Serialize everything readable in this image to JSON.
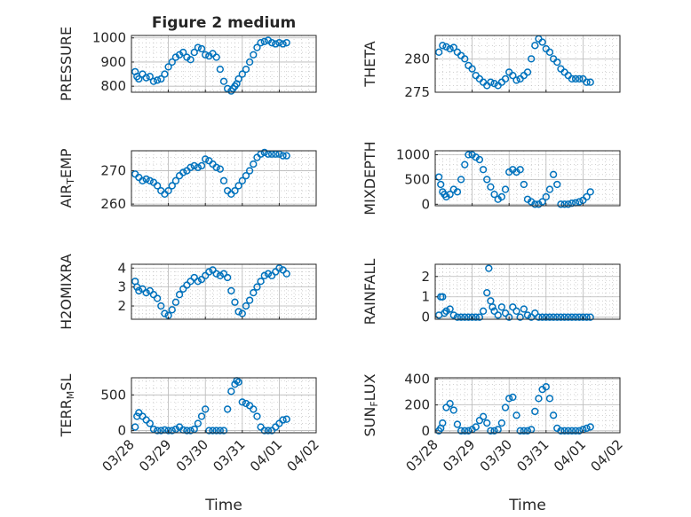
{
  "figure_title": "Figure 2 medium",
  "colors": {
    "marker": "#0072BD",
    "axes": "#262626",
    "grid": "#b8b8b8"
  },
  "chart_data": [
    {
      "type": "scatter",
      "ylabel": "PRESSURE",
      "ylabel_main": "PRESSURE",
      "ylabel_sub": "",
      "ylabel_rest": "",
      "ylim": [
        775,
        1010
      ],
      "yticks": [
        800,
        900,
        1000
      ],
      "show_xticklabels": false,
      "x": [
        0.1,
        0.15,
        0.2,
        0.3,
        0.4,
        0.5,
        0.6,
        0.7,
        0.8,
        0.9,
        1.0,
        1.1,
        1.2,
        1.3,
        1.4,
        1.5,
        1.6,
        1.7,
        1.8,
        1.9,
        2.0,
        2.1,
        2.2,
        2.3,
        2.4,
        2.5,
        2.6,
        2.7,
        2.75,
        2.8,
        2.85,
        2.9,
        3.0,
        3.1,
        3.2,
        3.3,
        3.4,
        3.5,
        3.6,
        3.7,
        3.8,
        3.9,
        4.0,
        4.1,
        4.2
      ],
      "y": [
        860,
        840,
        830,
        850,
        835,
        840,
        820,
        825,
        830,
        850,
        880,
        900,
        920,
        930,
        940,
        920,
        910,
        940,
        960,
        955,
        930,
        925,
        935,
        920,
        870,
        820,
        790,
        780,
        790,
        800,
        810,
        830,
        850,
        870,
        900,
        930,
        960,
        980,
        985,
        990,
        980,
        975,
        980,
        975,
        980
      ]
    },
    {
      "type": "scatter",
      "ylabel": "THETA",
      "ylabel_main": "THETA",
      "ylabel_sub": "",
      "ylabel_rest": "",
      "ylim": [
        275,
        283.5
      ],
      "yticks": [
        275,
        280
      ],
      "show_xticklabels": false,
      "x": [
        0.1,
        0.2,
        0.3,
        0.4,
        0.5,
        0.6,
        0.7,
        0.8,
        0.9,
        1.0,
        1.1,
        1.2,
        1.3,
        1.4,
        1.5,
        1.6,
        1.7,
        1.8,
        1.9,
        2.0,
        2.1,
        2.2,
        2.3,
        2.4,
        2.5,
        2.6,
        2.7,
        2.8,
        2.9,
        3.0,
        3.1,
        3.2,
        3.3,
        3.4,
        3.5,
        3.6,
        3.7,
        3.8,
        3.9,
        4.0,
        4.1,
        4.2
      ],
      "y": [
        281,
        282,
        281.8,
        281.5,
        281.7,
        281,
        280.5,
        280,
        279,
        278.5,
        277.5,
        277,
        276.5,
        276,
        276.5,
        276.3,
        276,
        276.5,
        277,
        278,
        277.5,
        276.8,
        277,
        277.5,
        278,
        280,
        282,
        283,
        282.5,
        281.5,
        281,
        280,
        279.5,
        278.5,
        278,
        277.5,
        277,
        277,
        277,
        277,
        276.5,
        276.5
      ]
    },
    {
      "type": "scatter",
      "ylabel": "AIR_TEMP",
      "ylabel_main": "AIR",
      "ylabel_sub": "T",
      "ylabel_rest": "EMP",
      "ylim": [
        259.5,
        276
      ],
      "yticks": [
        260,
        270
      ],
      "show_xticklabels": false,
      "x": [
        0.1,
        0.2,
        0.3,
        0.4,
        0.5,
        0.6,
        0.7,
        0.8,
        0.9,
        1.0,
        1.1,
        1.2,
        1.3,
        1.4,
        1.5,
        1.6,
        1.7,
        1.8,
        1.9,
        2.0,
        2.1,
        2.2,
        2.3,
        2.4,
        2.5,
        2.6,
        2.7,
        2.8,
        2.9,
        3.0,
        3.1,
        3.2,
        3.3,
        3.4,
        3.5,
        3.6,
        3.7,
        3.8,
        3.9,
        4.0,
        4.1,
        4.2
      ],
      "y": [
        269,
        268,
        267,
        267.5,
        267,
        266.5,
        265.5,
        264,
        263,
        264,
        265.5,
        267,
        268.5,
        269.5,
        270,
        271,
        271.5,
        271,
        271.5,
        273.5,
        273,
        272,
        271,
        270.5,
        267,
        264,
        263,
        264,
        265.5,
        267,
        268.5,
        270,
        272,
        274,
        275,
        275.5,
        275,
        275,
        275,
        275,
        274.5,
        274.5
      ]
    },
    {
      "type": "scatter",
      "ylabel": "MIXDEPTH",
      "ylabel_main": "MIXDEPTH",
      "ylabel_sub": "",
      "ylabel_rest": "",
      "ylim": [
        -30,
        1080
      ],
      "yticks": [
        0,
        500,
        1000
      ],
      "show_xticklabels": false,
      "x": [
        0.1,
        0.15,
        0.2,
        0.25,
        0.3,
        0.4,
        0.5,
        0.6,
        0.7,
        0.8,
        0.9,
        1.0,
        1.1,
        1.2,
        1.3,
        1.4,
        1.5,
        1.6,
        1.7,
        1.8,
        1.9,
        2.0,
        2.1,
        2.2,
        2.3,
        2.4,
        2.5,
        2.6,
        2.7,
        2.8,
        2.9,
        3.0,
        3.1,
        3.2,
        3.3,
        3.4,
        3.5,
        3.6,
        3.7,
        3.8,
        3.9,
        4.0,
        4.1,
        4.2
      ],
      "y": [
        550,
        400,
        250,
        200,
        150,
        200,
        300,
        250,
        500,
        800,
        1000,
        1000,
        950,
        900,
        700,
        500,
        350,
        200,
        100,
        150,
        300,
        650,
        700,
        650,
        700,
        400,
        100,
        50,
        0,
        0,
        50,
        150,
        300,
        600,
        400,
        0,
        0,
        0,
        20,
        30,
        50,
        80,
        150,
        250
      ]
    },
    {
      "type": "scatter",
      "ylabel": "H2OMIXRA",
      "ylabel_main": "H2OMIXRA",
      "ylabel_sub": "",
      "ylabel_rest": "",
      "ylim": [
        1.3,
        4.2
      ],
      "yticks": [
        2,
        3,
        4
      ],
      "show_xticklabels": false,
      "x": [
        0.1,
        0.15,
        0.2,
        0.3,
        0.4,
        0.5,
        0.6,
        0.7,
        0.8,
        0.9,
        1.0,
        1.1,
        1.2,
        1.3,
        1.4,
        1.5,
        1.6,
        1.7,
        1.8,
        1.9,
        2.0,
        2.1,
        2.2,
        2.3,
        2.4,
        2.5,
        2.6,
        2.7,
        2.8,
        2.9,
        3.0,
        3.1,
        3.2,
        3.3,
        3.4,
        3.5,
        3.6,
        3.7,
        3.8,
        3.9,
        4.0,
        4.1,
        4.2
      ],
      "y": [
        3.3,
        3.0,
        2.8,
        2.9,
        2.7,
        2.8,
        2.6,
        2.4,
        2.0,
        1.6,
        1.5,
        1.8,
        2.2,
        2.6,
        2.9,
        3.1,
        3.3,
        3.5,
        3.3,
        3.4,
        3.6,
        3.8,
        3.9,
        3.7,
        3.6,
        3.7,
        3.5,
        2.8,
        2.2,
        1.7,
        1.6,
        2.0,
        2.3,
        2.7,
        3.0,
        3.3,
        3.6,
        3.7,
        3.6,
        3.8,
        4.0,
        3.9,
        3.7
      ]
    },
    {
      "type": "scatter",
      "ylabel": "RAINFALL",
      "ylabel_main": "RAINFALL",
      "ylabel_sub": "",
      "ylabel_rest": "",
      "ylim": [
        -0.1,
        2.6
      ],
      "yticks": [
        0,
        1,
        2
      ],
      "show_xticklabels": false,
      "x": [
        0.1,
        0.15,
        0.2,
        0.25,
        0.3,
        0.4,
        0.5,
        0.6,
        0.7,
        0.8,
        0.9,
        1.0,
        1.1,
        1.2,
        1.3,
        1.4,
        1.45,
        1.5,
        1.55,
        1.6,
        1.7,
        1.8,
        1.9,
        2.0,
        2.1,
        2.2,
        2.3,
        2.4,
        2.5,
        2.6,
        2.7,
        2.8,
        2.9,
        3.0,
        3.1,
        3.2,
        3.3,
        3.4,
        3.5,
        3.6,
        3.7,
        3.8,
        3.9,
        4.0,
        4.1,
        4.2
      ],
      "y": [
        0.1,
        1.0,
        1.0,
        0.2,
        0.3,
        0.4,
        0.1,
        0.0,
        0.0,
        0.0,
        0.0,
        0.0,
        0.0,
        0.0,
        0.3,
        1.2,
        2.4,
        0.8,
        0.5,
        0.3,
        0.1,
        0.5,
        0.2,
        0.0,
        0.5,
        0.3,
        0.0,
        0.4,
        0.1,
        0.0,
        0.2,
        0.0,
        0.0,
        0.0,
        0.0,
        0.0,
        0.0,
        0.0,
        0.0,
        0.0,
        0.0,
        0.0,
        0.0,
        0.0,
        0.0,
        0.0
      ]
    },
    {
      "type": "scatter",
      "ylabel": "TERR_MSL",
      "ylabel_main": "TERR",
      "ylabel_sub": "M",
      "ylabel_rest": "SL",
      "ylim": [
        -30,
        740
      ],
      "yticks": [
        0,
        500
      ],
      "show_xticklabels": true,
      "x": [
        0.1,
        0.15,
        0.2,
        0.3,
        0.4,
        0.5,
        0.6,
        0.7,
        0.8,
        0.9,
        1.0,
        1.1,
        1.2,
        1.3,
        1.4,
        1.5,
        1.6,
        1.7,
        1.8,
        1.9,
        2.0,
        2.1,
        2.2,
        2.3,
        2.4,
        2.5,
        2.6,
        2.7,
        2.8,
        2.85,
        2.9,
        3.0,
        3.1,
        3.2,
        3.3,
        3.4,
        3.5,
        3.6,
        3.7,
        3.8,
        3.9,
        4.0,
        4.1,
        4.2
      ],
      "y": [
        50,
        200,
        250,
        200,
        150,
        100,
        20,
        0,
        0,
        10,
        0,
        0,
        20,
        50,
        10,
        0,
        0,
        20,
        100,
        200,
        300,
        0,
        0,
        0,
        0,
        0,
        300,
        550,
        650,
        700,
        680,
        400,
        380,
        350,
        300,
        200,
        50,
        0,
        0,
        0,
        50,
        100,
        150,
        160
      ]
    },
    {
      "type": "scatter",
      "ylabel": "SUN_FLUX",
      "ylabel_main": "SUN",
      "ylabel_sub": "F",
      "ylabel_rest": "LUX",
      "ylim": [
        -15,
        410
      ],
      "yticks": [
        0,
        200,
        400
      ],
      "show_xticklabels": true,
      "x": [
        0.1,
        0.15,
        0.2,
        0.3,
        0.4,
        0.5,
        0.6,
        0.7,
        0.8,
        0.9,
        1.0,
        1.1,
        1.2,
        1.3,
        1.4,
        1.5,
        1.6,
        1.7,
        1.8,
        1.9,
        2.0,
        2.1,
        2.2,
        2.3,
        2.4,
        2.5,
        2.6,
        2.7,
        2.8,
        2.9,
        3.0,
        3.1,
        3.2,
        3.3,
        3.4,
        3.5,
        3.6,
        3.7,
        3.8,
        3.9,
        4.0,
        4.1,
        4.2
      ],
      "y": [
        0,
        20,
        60,
        180,
        210,
        160,
        50,
        0,
        0,
        0,
        10,
        30,
        80,
        110,
        60,
        0,
        0,
        10,
        60,
        180,
        250,
        260,
        120,
        0,
        0,
        0,
        10,
        150,
        250,
        320,
        340,
        250,
        120,
        20,
        0,
        0,
        0,
        0,
        0,
        0,
        10,
        20,
        30
      ]
    }
  ],
  "x_axis": {
    "xlabel": "Time",
    "xlim": [
      0,
      5
    ],
    "ticks": [
      0,
      1,
      2,
      3,
      4,
      5
    ],
    "tick_labels": [
      "03/28",
      "03/29",
      "03/30",
      "03/31",
      "04/01",
      "04/02"
    ]
  }
}
